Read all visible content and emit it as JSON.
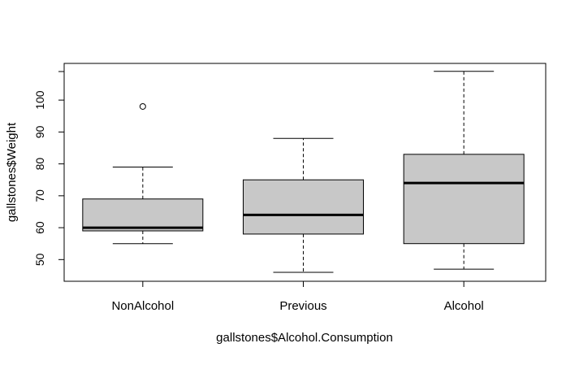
{
  "chart_data": {
    "type": "box",
    "title": "",
    "xlabel": "gallstones$Alcohol.Consumption",
    "ylabel": "gallstones$Weight",
    "categories": [
      "NonAlcohol",
      "Previous",
      "Alcohol"
    ],
    "ylim": [
      43.2,
      111.5
    ],
    "yticks": [
      50,
      60,
      70,
      80,
      90,
      100
    ],
    "boxes": [
      {
        "category": "NonAlcohol",
        "whisker_low": 55,
        "q1": 59,
        "median": 60,
        "q3": 69,
        "whisker_high": 79,
        "outliers": [
          98
        ]
      },
      {
        "category": "Previous",
        "whisker_low": 46,
        "q1": 58,
        "median": 64,
        "q3": 75,
        "whisker_high": 88,
        "outliers": []
      },
      {
        "category": "Alcohol",
        "whisker_low": 47,
        "q1": 55,
        "median": 74,
        "q3": 83,
        "whisker_high": 109,
        "outliers": []
      }
    ],
    "grid": false,
    "legend": "none",
    "colors": {
      "box_fill": "#c8c8c8",
      "stroke": "#000000",
      "background": "#ffffff"
    }
  }
}
